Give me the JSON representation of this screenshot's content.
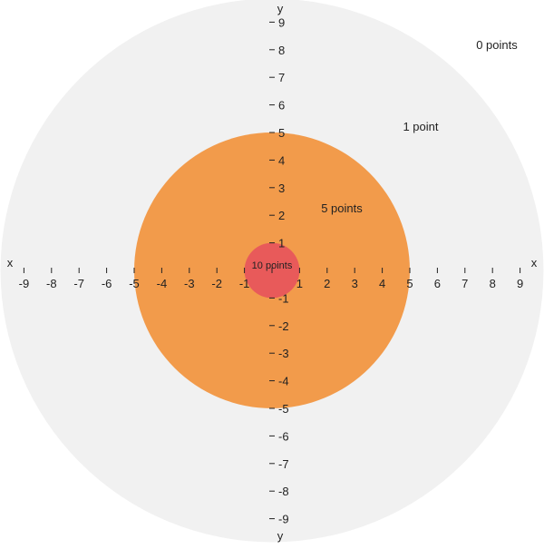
{
  "colors": {
    "outer_zone": "#f1f1f1",
    "middle_zone": "#f29b4b",
    "inner_zone": "#e85a5a",
    "text": "#222222",
    "tick": "#222222"
  },
  "axes": {
    "x_label_left": "x",
    "x_label_right": "x",
    "y_label_top": "y",
    "y_label_bottom": "y",
    "range": [
      -10,
      10
    ],
    "ticks": [
      -9,
      -8,
      -7,
      -6,
      -5,
      -4,
      -3,
      -2,
      -1,
      1,
      2,
      3,
      4,
      5,
      6,
      7,
      8,
      9
    ]
  },
  "zones": [
    {
      "label": "0 points",
      "radius": 10,
      "color_key": "outer_zone"
    },
    {
      "label": "1 point",
      "radius": 10,
      "color_key": "outer_zone"
    },
    {
      "label": "5 points",
      "radius": 5,
      "color_key": "middle_zone"
    },
    {
      "label": "10 points",
      "radius": 1,
      "color_key": "inner_zone"
    }
  ]
}
